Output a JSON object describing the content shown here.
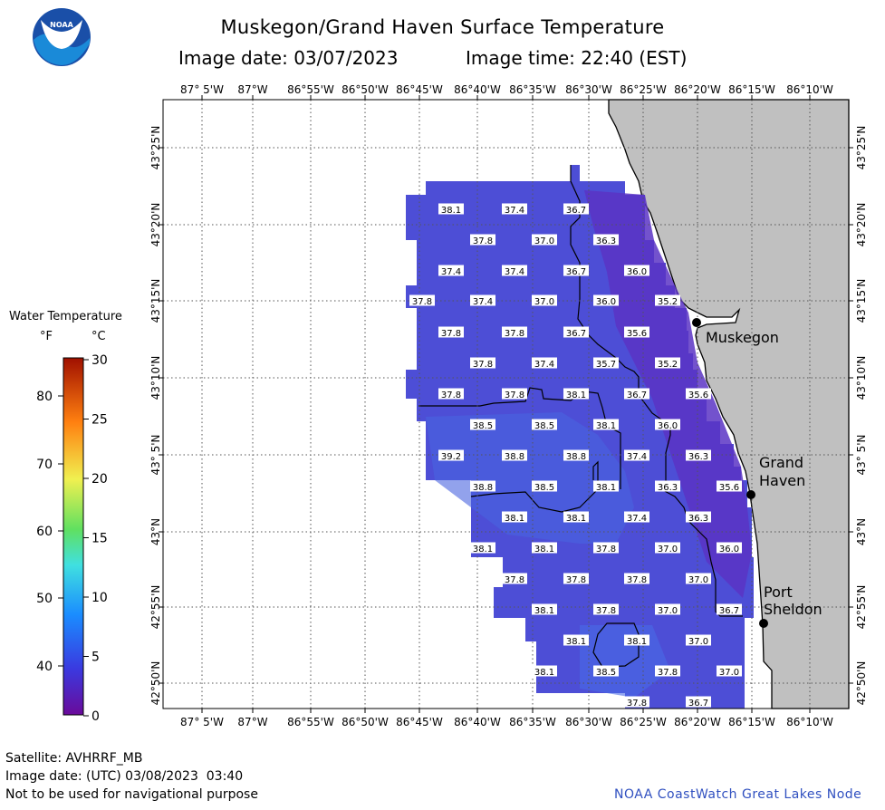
{
  "header": {
    "title": "Muskegon/Grand Haven Surface Temperature",
    "image_date": "Image date: 03/07/2023",
    "image_time": "Image time: 22:40 (EST)"
  },
  "logo": {
    "text": "NOAA",
    "icon": "noaa-logo-icon"
  },
  "legend": {
    "title": "Water Temperature",
    "unit_f": "°F",
    "unit_c": "°C",
    "ticks_f": [
      "80",
      "70",
      "60",
      "50",
      "40"
    ],
    "ticks_c": [
      "30",
      "25",
      "20",
      "15",
      "10",
      "5",
      "0"
    ]
  },
  "axes": {
    "longitudes": [
      "87° 5'W",
      "87°W",
      "86°55'W",
      "86°50'W",
      "86°45'W",
      "86°40'W",
      "86°35'W",
      "86°30'W",
      "86°25'W",
      "86°20'W",
      "86°15'W",
      "86°10'W"
    ],
    "latitudes": [
      "43°25'N",
      "43°20'N",
      "43°15'N",
      "43°10'N",
      "43° 5'N",
      "43°N",
      "42°55'N",
      "42°50'N"
    ]
  },
  "places": [
    {
      "name": "Muskegon"
    },
    {
      "name": "Grand Haven"
    },
    {
      "name": "Port Sheldon"
    }
  ],
  "temperatures": [
    [
      "38.1",
      "37.4",
      "36.7"
    ],
    [
      "37.8",
      "37.0",
      "36.3"
    ],
    [
      "37.4",
      "37.4",
      "36.7",
      "36.0"
    ],
    [
      "37.8",
      "37.4",
      "37.0",
      "36.0",
      "35.2"
    ],
    [
      "37.8",
      "37.8",
      "36.7",
      "35.6"
    ],
    [
      "37.8",
      "37.4",
      "35.7",
      "35.2"
    ],
    [
      "37.8",
      "37.8",
      "38.1",
      "36.7",
      "35.6"
    ],
    [
      "38.5",
      "38.5",
      "38.1",
      "36.0"
    ],
    [
      "39.2",
      "38.8",
      "38.8",
      "37.4",
      "36.3"
    ],
    [
      "38.8",
      "38.5",
      "38.1",
      "36.3",
      "35.6"
    ],
    [
      "38.1",
      "38.1",
      "37.4",
      "36.3"
    ],
    [
      "38.1",
      "38.1",
      "37.8",
      "37.0",
      "36.0"
    ],
    [
      "37.8",
      "37.8",
      "37.8",
      "37.0"
    ],
    [
      "38.1",
      "37.8",
      "37.0",
      "36.7"
    ],
    [
      "38.1",
      "38.1",
      "37.0"
    ],
    [
      "38.1",
      "38.5",
      "37.8",
      "37.0"
    ],
    [
      "37.8",
      "36.7"
    ]
  ],
  "colors": {
    "water_warm": "#4a4cd8",
    "water_cold": "#5a2fc0",
    "land": "#c0c0c0",
    "credit": "#3050c0"
  },
  "footer": {
    "satellite": "Satellite: AVHRRF_MB",
    "utc_date": "Image date: (UTC) 03/08/2023  03:40",
    "disclaimer": "Not to be used for navigational purpose",
    "credit": "NOAA CoastWatch Great Lakes Node"
  }
}
